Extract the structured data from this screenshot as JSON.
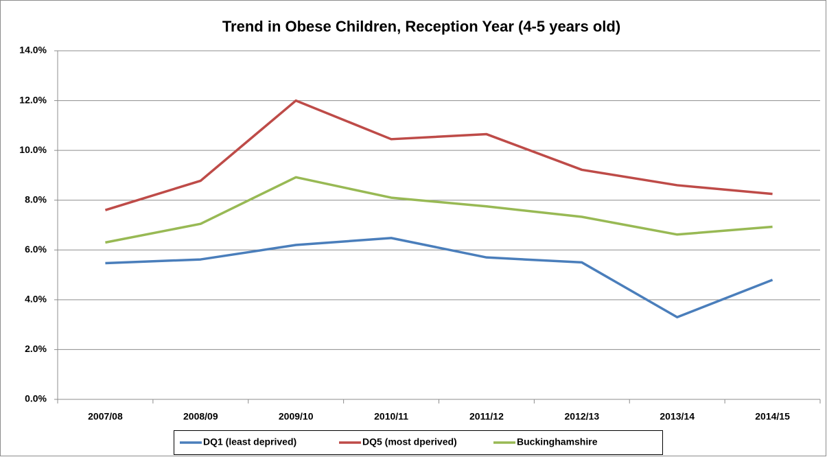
{
  "chart_data": {
    "type": "line",
    "title": "Trend in Obese Children, Reception Year (4-5 years old)",
    "categories": [
      "2007/08",
      "2008/09",
      "2009/10",
      "2010/11",
      "2011/12",
      "2012/13",
      "2013/14",
      "2014/15"
    ],
    "series": [
      {
        "name": "DQ1 (least deprived)",
        "color": "#4a7ebb",
        "values": [
          5.47,
          5.62,
          6.2,
          6.48,
          5.7,
          5.5,
          3.3,
          4.8
        ]
      },
      {
        "name": "DQ5 (most dperived)",
        "color": "#be4b48",
        "values": [
          7.6,
          8.78,
          12.0,
          10.45,
          10.65,
          9.22,
          8.6,
          8.25
        ]
      },
      {
        "name": "Buckinghamshire",
        "color": "#98b954",
        "values": [
          6.3,
          7.05,
          8.92,
          8.1,
          7.75,
          7.33,
          6.62,
          6.93
        ]
      }
    ],
    "ylim": [
      0,
      14
    ],
    "yticks": [
      {
        "value": 0,
        "label": "0.0%"
      },
      {
        "value": 2,
        "label": "2.0%"
      },
      {
        "value": 4,
        "label": "4.0%"
      },
      {
        "value": 6,
        "label": "6.0%"
      },
      {
        "value": 8,
        "label": "8.0%"
      },
      {
        "value": 10,
        "label": "10.0%"
      },
      {
        "value": 12,
        "label": "12.0%"
      },
      {
        "value": 14,
        "label": "14.0%"
      }
    ],
    "grid": true,
    "legend": "bottom"
  }
}
